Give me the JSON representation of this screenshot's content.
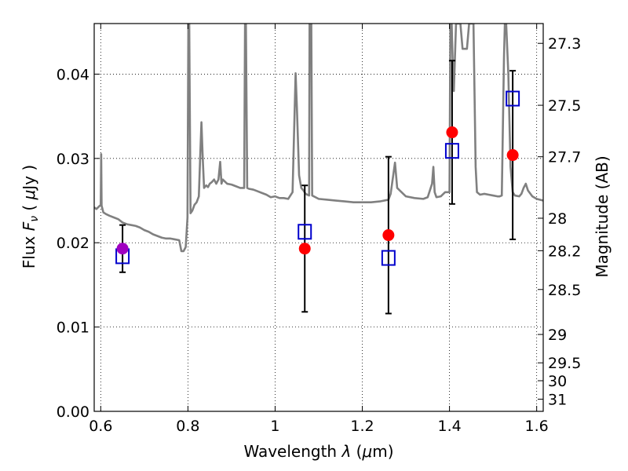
{
  "chart_data": {
    "type": "line",
    "xlabel": "Wavelength  λ (μm)",
    "ylabel": "Flux  F_ν  ( μJy )",
    "y2label": "Magnitude (AB)",
    "xlim": [
      0.585,
      1.615
    ],
    "ylim": [
      0.0,
      0.046
    ],
    "grid": true,
    "x_ticks": [
      {
        "value": 0.6,
        "label": "0.6"
      },
      {
        "value": 0.8,
        "label": "0.8"
      },
      {
        "value": 1.0,
        "label": "1"
      },
      {
        "value": 1.2,
        "label": "1.2"
      },
      {
        "value": 1.4,
        "label": "1.4"
      },
      {
        "value": 1.6,
        "label": "1.6"
      }
    ],
    "y_ticks": [
      {
        "value": 0.0,
        "label": "0.00"
      },
      {
        "value": 0.01,
        "label": "0.01"
      },
      {
        "value": 0.02,
        "label": "0.02"
      },
      {
        "value": 0.03,
        "label": "0.03"
      },
      {
        "value": 0.04,
        "label": "0.04"
      }
    ],
    "y2_ticks": [
      {
        "mag": 27.3,
        "label": "27.3"
      },
      {
        "mag": 27.5,
        "label": "27.5"
      },
      {
        "mag": 27.7,
        "label": "27.7"
      },
      {
        "mag": 28.0,
        "label": "28"
      },
      {
        "mag": 28.2,
        "label": "28.2"
      },
      {
        "mag": 28.5,
        "label": "28.5"
      },
      {
        "mag": 29.0,
        "label": "29"
      },
      {
        "mag": 29.5,
        "label": "29.5"
      },
      {
        "mag": 30.0,
        "label": "30"
      },
      {
        "mag": 31.0,
        "label": "31"
      }
    ],
    "series": [
      {
        "kind": "model-spectrum",
        "color": "#808080",
        "points": [
          [
            0.585,
            0.0242
          ],
          [
            0.59,
            0.024
          ],
          [
            0.598,
            0.0244
          ],
          [
            0.6,
            0.0244
          ],
          [
            0.601,
            0.0305
          ],
          [
            0.602,
            0.0244
          ],
          [
            0.606,
            0.0236
          ],
          [
            0.612,
            0.0234
          ],
          [
            0.62,
            0.0232
          ],
          [
            0.63,
            0.023
          ],
          [
            0.64,
            0.0228
          ],
          [
            0.65,
            0.0224
          ],
          [
            0.66,
            0.0222
          ],
          [
            0.67,
            0.0221
          ],
          [
            0.68,
            0.022
          ],
          [
            0.69,
            0.0218
          ],
          [
            0.7,
            0.0215
          ],
          [
            0.71,
            0.0213
          ],
          [
            0.72,
            0.021
          ],
          [
            0.73,
            0.0208
          ],
          [
            0.74,
            0.0206
          ],
          [
            0.75,
            0.0205
          ],
          [
            0.76,
            0.0205
          ],
          [
            0.77,
            0.0204
          ],
          [
            0.78,
            0.0203
          ],
          [
            0.785,
            0.019
          ],
          [
            0.79,
            0.019
          ],
          [
            0.795,
            0.0195
          ],
          [
            0.799,
            0.023
          ],
          [
            0.801,
            0.046
          ],
          [
            0.803,
            0.046
          ],
          [
            0.806,
            0.0235
          ],
          [
            0.81,
            0.0238
          ],
          [
            0.815,
            0.0245
          ],
          [
            0.82,
            0.0248
          ],
          [
            0.825,
            0.0255
          ],
          [
            0.828,
            0.03
          ],
          [
            0.831,
            0.0343
          ],
          [
            0.834,
            0.03
          ],
          [
            0.837,
            0.0265
          ],
          [
            0.842,
            0.0268
          ],
          [
            0.846,
            0.0266
          ],
          [
            0.85,
            0.027
          ],
          [
            0.855,
            0.0272
          ],
          [
            0.86,
            0.0275
          ],
          [
            0.865,
            0.027
          ],
          [
            0.87,
            0.0275
          ],
          [
            0.874,
            0.0296
          ],
          [
            0.877,
            0.027
          ],
          [
            0.88,
            0.0275
          ],
          [
            0.886,
            0.0272
          ],
          [
            0.89,
            0.027
          ],
          [
            0.9,
            0.0269
          ],
          [
            0.91,
            0.0267
          ],
          [
            0.92,
            0.0265
          ],
          [
            0.929,
            0.0265
          ],
          [
            0.931,
            0.046
          ],
          [
            0.933,
            0.046
          ],
          [
            0.936,
            0.0265
          ],
          [
            0.94,
            0.0264
          ],
          [
            0.95,
            0.0263
          ],
          [
            0.96,
            0.0261
          ],
          [
            0.97,
            0.0259
          ],
          [
            0.98,
            0.0257
          ],
          [
            0.99,
            0.0254
          ],
          [
            1.0,
            0.0255
          ],
          [
            1.01,
            0.0253
          ],
          [
            1.02,
            0.0253
          ],
          [
            1.03,
            0.0252
          ],
          [
            1.04,
            0.026
          ],
          [
            1.047,
            0.0401
          ],
          [
            1.05,
            0.036
          ],
          [
            1.055,
            0.028
          ],
          [
            1.06,
            0.0265
          ],
          [
            1.065,
            0.0262
          ],
          [
            1.07,
            0.0258
          ],
          [
            1.078,
            0.0256
          ],
          [
            1.079,
            0.046
          ],
          [
            1.083,
            0.046
          ],
          [
            1.085,
            0.0256
          ],
          [
            1.1,
            0.0252
          ],
          [
            1.12,
            0.0251
          ],
          [
            1.14,
            0.025
          ],
          [
            1.16,
            0.0249
          ],
          [
            1.18,
            0.0248
          ],
          [
            1.2,
            0.0248
          ],
          [
            1.22,
            0.0248
          ],
          [
            1.24,
            0.0249
          ],
          [
            1.26,
            0.0251
          ],
          [
            1.265,
            0.0258
          ],
          [
            1.275,
            0.0295
          ],
          [
            1.28,
            0.0265
          ],
          [
            1.29,
            0.026
          ],
          [
            1.3,
            0.0255
          ],
          [
            1.32,
            0.0253
          ],
          [
            1.34,
            0.0252
          ],
          [
            1.35,
            0.0254
          ],
          [
            1.36,
            0.027
          ],
          [
            1.363,
            0.029
          ],
          [
            1.366,
            0.026
          ],
          [
            1.37,
            0.0254
          ],
          [
            1.38,
            0.0255
          ],
          [
            1.39,
            0.026
          ],
          [
            1.4,
            0.026
          ],
          [
            1.402,
            0.046
          ],
          [
            1.405,
            0.046
          ],
          [
            1.408,
            0.04
          ],
          [
            1.41,
            0.038
          ],
          [
            1.415,
            0.046
          ],
          [
            1.425,
            0.046
          ],
          [
            1.43,
            0.043
          ],
          [
            1.44,
            0.043
          ],
          [
            1.445,
            0.046
          ],
          [
            1.455,
            0.046
          ],
          [
            1.46,
            0.029
          ],
          [
            1.463,
            0.026
          ],
          [
            1.47,
            0.0257
          ],
          [
            1.48,
            0.0258
          ],
          [
            1.49,
            0.0257
          ],
          [
            1.5,
            0.0256
          ],
          [
            1.51,
            0.0255
          ],
          [
            1.515,
            0.0255
          ],
          [
            1.52,
            0.0256
          ],
          [
            1.525,
            0.042
          ],
          [
            1.527,
            0.046
          ],
          [
            1.53,
            0.046
          ],
          [
            1.535,
            0.04
          ],
          [
            1.54,
            0.029
          ],
          [
            1.545,
            0.026
          ],
          [
            1.55,
            0.0256
          ],
          [
            1.56,
            0.0255
          ],
          [
            1.565,
            0.0258
          ],
          [
            1.57,
            0.0265
          ],
          [
            1.575,
            0.027
          ],
          [
            1.58,
            0.0262
          ],
          [
            1.59,
            0.0255
          ],
          [
            1.6,
            0.0252
          ],
          [
            1.615,
            0.025
          ]
        ]
      },
      {
        "kind": "observed-flux",
        "color": "#ff0000",
        "points": [
          {
            "x": 0.65,
            "y": 0.0193,
            "err": 0.0028
          },
          {
            "x": 1.068,
            "y": 0.0193,
            "err": 0.0075
          },
          {
            "x": 1.26,
            "y": 0.0209,
            "err": 0.0093
          },
          {
            "x": 1.406,
            "y": 0.0331,
            "err": 0.0085
          },
          {
            "x": 1.545,
            "y": 0.0304,
            "err": 0.01
          }
        ]
      },
      {
        "kind": "model-band-flux",
        "color": "#0000cc",
        "points": [
          {
            "x": 0.65,
            "y": 0.0184
          },
          {
            "x": 1.068,
            "y": 0.0213
          },
          {
            "x": 1.26,
            "y": 0.0182
          },
          {
            "x": 1.406,
            "y": 0.0309
          },
          {
            "x": 1.545,
            "y": 0.0371
          }
        ]
      }
    ],
    "overlap_marker_color": "#a000c0"
  }
}
